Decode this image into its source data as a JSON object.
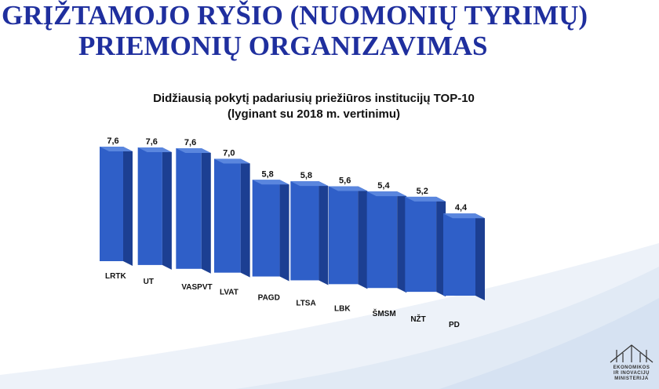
{
  "slide": {
    "title_line1": "GRĮŽTAMOJO RYŠIO (NUOMONIŲ TYRIMŲ)",
    "title_line2": "PRIEMONIŲ ORGANIZAVIMAS"
  },
  "logo": {
    "line1": "EKONOMIKOS",
    "line2": "IR INOVACIJŲ",
    "line3": "MINISTERIJA"
  },
  "colors": {
    "title": "#1f2f9e",
    "bar_front": "#2f5fc8",
    "bar_side": "#1c3f92",
    "bar_top": "#5a86de",
    "swoosh": "#dbe6f4"
  },
  "chart_data": {
    "type": "bar",
    "title": "Didžiausią pokytį padariusių priežiūros institucijų TOP-10",
    "subtitle": "(lyginant su 2018 m. vertinimu)",
    "categories": [
      "LRTK",
      "UT",
      "VASPVT",
      "LVAT",
      "PAGD",
      "LTSA",
      "LBK",
      "ŠMSM",
      "NŽT",
      "PD"
    ],
    "values": [
      7.6,
      7.6,
      7.6,
      7.0,
      5.8,
      5.8,
      5.6,
      5.4,
      5.2,
      4.4
    ],
    "data_labels": [
      "7,6",
      "7,6",
      "7,6",
      "7,0",
      "5,8",
      "5,8",
      "5,6",
      "5,4",
      "5,2",
      "4,4"
    ],
    "grid": false,
    "legend": "none",
    "style": "3d-perspective"
  }
}
